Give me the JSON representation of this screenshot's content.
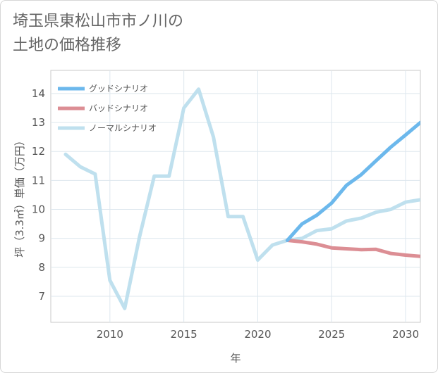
{
  "title_lines": [
    "埼玉県東松山市市ノ川の",
    "土地の価格推移"
  ],
  "chart_data": {
    "type": "line",
    "title": "埼玉県東松山市市ノ川の土地の価格推移",
    "xlabel": "年",
    "ylabel": "坪（3.3㎡）単価（万円）",
    "xlim": [
      2006,
      2031
    ],
    "ylim": [
      6.1,
      14.8
    ],
    "xticks": [
      2010,
      2015,
      2020,
      2025,
      2030
    ],
    "yticks": [
      7,
      8,
      9,
      10,
      11,
      12,
      13,
      14
    ],
    "grid": true,
    "legend_position": "top-left",
    "series": [
      {
        "name": "グッドシナリオ",
        "color": "#6cb8ec",
        "x": [
          2022,
          2023,
          2024,
          2025,
          2026,
          2027,
          2028,
          2029,
          2030,
          2031
        ],
        "values": [
          8.93,
          9.5,
          9.8,
          10.22,
          10.83,
          11.2,
          11.68,
          12.15,
          12.57,
          13.0
        ]
      },
      {
        "name": "バッドシナリオ",
        "color": "#dc8e94",
        "x": [
          2022,
          2023,
          2024,
          2025,
          2026,
          2027,
          2028,
          2029,
          2030,
          2031
        ],
        "values": [
          8.93,
          8.88,
          8.8,
          8.67,
          8.64,
          8.61,
          8.62,
          8.48,
          8.42,
          8.38
        ]
      },
      {
        "name": "ノーマルシナリオ",
        "color": "#bfe0ee",
        "x": [
          2007,
          2008,
          2009,
          2010,
          2011,
          2012,
          2013,
          2014,
          2015,
          2016,
          2017,
          2018,
          2019,
          2020,
          2021,
          2022,
          2023,
          2024,
          2025,
          2026,
          2027,
          2028,
          2029,
          2030,
          2031
        ],
        "values": [
          11.9,
          11.47,
          11.22,
          7.55,
          6.58,
          9.05,
          11.15,
          11.15,
          13.5,
          14.15,
          12.5,
          9.75,
          9.75,
          8.25,
          8.77,
          8.93,
          9.0,
          9.27,
          9.33,
          9.6,
          9.7,
          9.9,
          10.0,
          10.25,
          10.33
        ]
      }
    ]
  }
}
